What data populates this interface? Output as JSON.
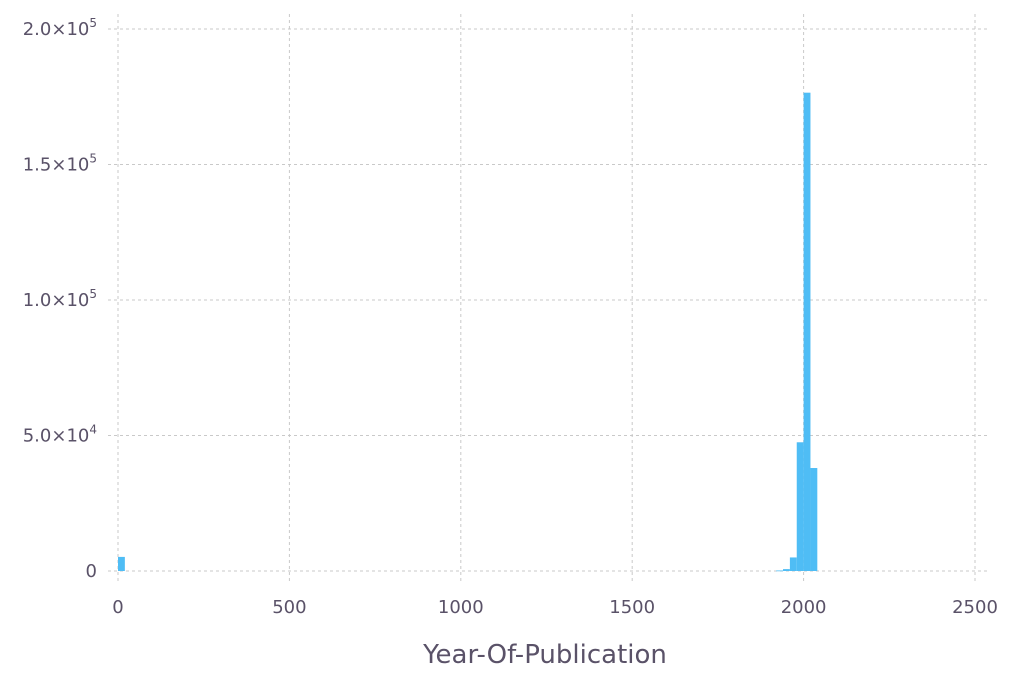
{
  "chart_data": {
    "type": "bar",
    "title": "",
    "xlabel": "Year-Of-Publication",
    "ylabel": "",
    "xlim": [
      0,
      2500
    ],
    "ylim": [
      0,
      200000
    ],
    "grid": true,
    "color": "#4fbdf5",
    "bin_width": 20,
    "x_ticks": [
      {
        "value": 0,
        "label": "0"
      },
      {
        "value": 500,
        "label": "500"
      },
      {
        "value": 1000,
        "label": "1000"
      },
      {
        "value": 1500,
        "label": "1500"
      },
      {
        "value": 2000,
        "label": "2000"
      },
      {
        "value": 2500,
        "label": "2500"
      }
    ],
    "y_ticks": [
      {
        "value": 0,
        "mantissa": "0",
        "exponent": ""
      },
      {
        "value": 50000,
        "mantissa": "5.0×10",
        "exponent": "4"
      },
      {
        "value": 100000,
        "mantissa": "1.0×10",
        "exponent": "5"
      },
      {
        "value": 150000,
        "mantissa": "1.5×10",
        "exponent": "5"
      },
      {
        "value": 200000,
        "mantissa": "2.0×10",
        "exponent": "5"
      }
    ],
    "bins": [
      {
        "x0": 0,
        "x1": 20,
        "count": 5200
      },
      {
        "x0": 1920,
        "x1": 1940,
        "count": 200
      },
      {
        "x0": 1940,
        "x1": 1960,
        "count": 700
      },
      {
        "x0": 1960,
        "x1": 1980,
        "count": 5000
      },
      {
        "x0": 1980,
        "x1": 2000,
        "count": 47500
      },
      {
        "x0": 2000,
        "x1": 2020,
        "count": 176500
      },
      {
        "x0": 2020,
        "x1": 2040,
        "count": 38000
      }
    ]
  }
}
